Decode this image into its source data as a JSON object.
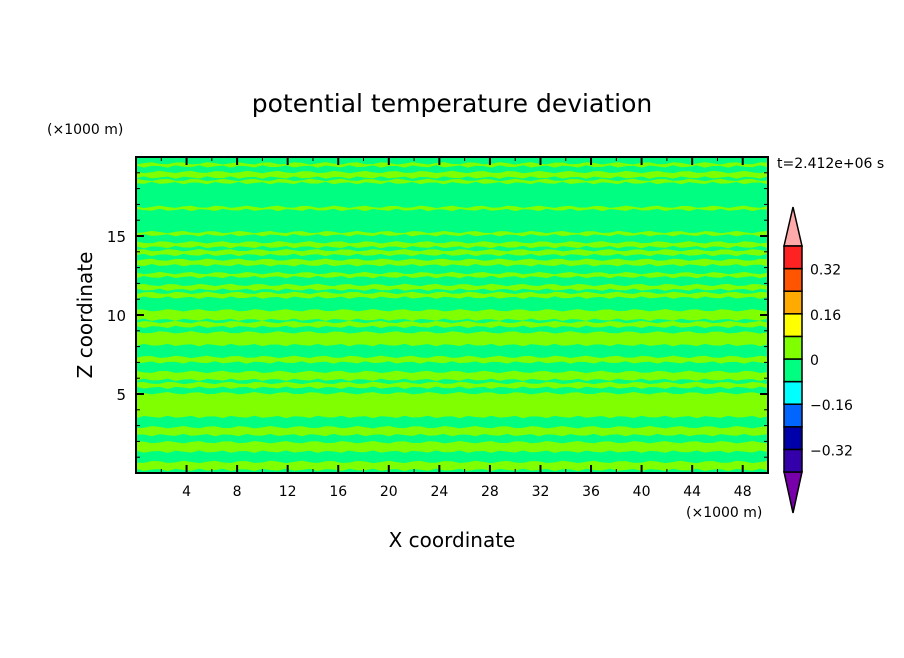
{
  "chart_data": {
    "type": "heatmap",
    "title": "potential temperature deviation",
    "xlabel": "X coordinate",
    "ylabel": "Z coordinate",
    "x_unit": "(×1000 m)",
    "y_unit": "(×1000 m)",
    "time_label": "t=2.412e+06 s",
    "xlim": [
      0,
      50
    ],
    "ylim": [
      0,
      20
    ],
    "xticks": [
      4,
      8,
      12,
      16,
      20,
      24,
      28,
      32,
      36,
      40,
      44,
      48
    ],
    "yticks": [
      5,
      10,
      15
    ],
    "background_level": [
      -0.08,
      0
    ],
    "bands_level": [
      0,
      0.08
    ],
    "bands_z": [
      [
        0.2,
        0.7
      ],
      [
        1.35,
        1.95
      ],
      [
        2.4,
        2.9
      ],
      [
        3.55,
        5.05
      ],
      [
        5.4,
        5.7
      ],
      [
        5.9,
        6.4
      ],
      [
        7.0,
        7.35
      ],
      [
        8.1,
        8.9
      ],
      [
        9.25,
        9.55
      ],
      [
        9.7,
        10.3
      ],
      [
        11.1,
        11.4
      ],
      [
        11.6,
        11.9
      ],
      [
        12.4,
        12.65
      ],
      [
        13.15,
        13.5
      ],
      [
        13.8,
        14.1
      ],
      [
        14.3,
        14.6
      ],
      [
        15.05,
        15.25
      ],
      [
        16.65,
        16.85
      ],
      [
        18.35,
        18.55
      ],
      [
        18.7,
        19.05
      ],
      [
        19.4,
        19.6
      ]
    ],
    "colorbar": {
      "levels": [
        -0.4,
        -0.32,
        -0.24,
        -0.16,
        -0.08,
        0,
        0.08,
        0.16,
        0.24,
        0.32,
        0.4
      ],
      "colors": [
        "#3300aa",
        "#0000aa",
        "#0066ff",
        "#00ffff",
        "#00ff80",
        "#80ff00",
        "#ffff00",
        "#ffaa00",
        "#ff5500",
        "#ff2222"
      ],
      "under_color": "#7700aa",
      "over_color": "#ffaaaa",
      "tick_labels": [
        "0.32",
        "0.16",
        "0",
        "−0.16",
        "−0.32"
      ],
      "tick_values": [
        0.32,
        0.16,
        0,
        -0.16,
        -0.32
      ]
    }
  }
}
